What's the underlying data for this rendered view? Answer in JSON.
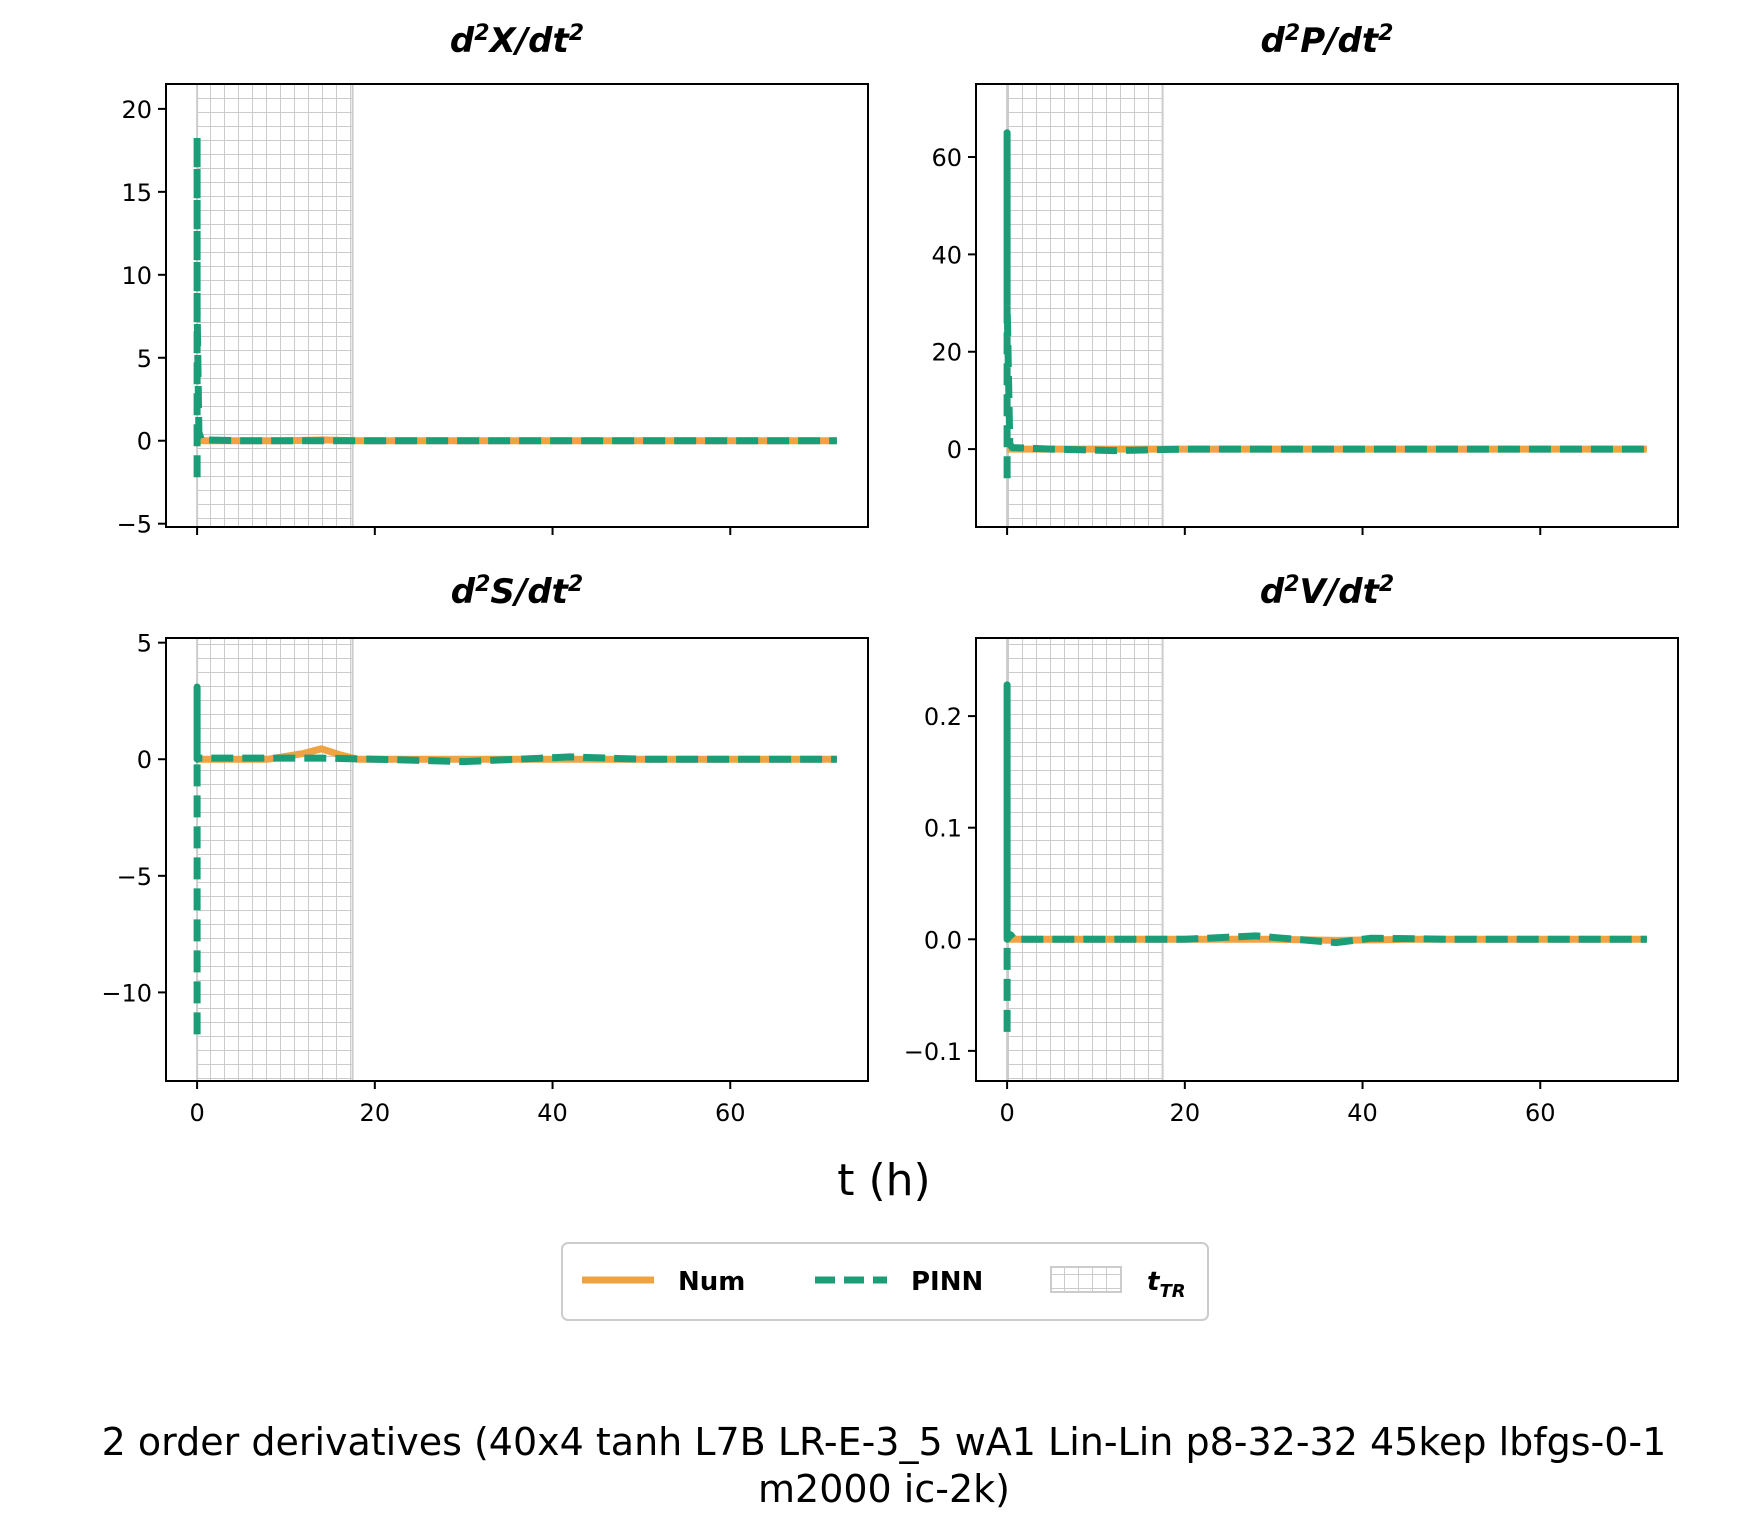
{
  "figure": {
    "xlabel": "t (h)",
    "suptitle_line1": "2 order derivatives (40x4 tanh L7B LR-E-3_5 wA1 Lin-Lin p8-32-32 45kep lbfgs-0-1",
    "suptitle_line2": "m2000 ic-2k)"
  },
  "legend": {
    "placement": "bottom-center",
    "num_label": "Num",
    "pinn_label": "PINN",
    "ttr_label_main": "t",
    "ttr_label_sub": "TR"
  },
  "colors": {
    "num": "#f0a342",
    "pinn": "#1b9e77",
    "hatch": "#cccccc"
  },
  "chart_data": [
    {
      "type": "line",
      "title_var": "X",
      "xlim": [
        -3.5,
        75.5
      ],
      "ylim": [
        -5.2,
        21.5
      ],
      "xticks": [
        0,
        20,
        40,
        60
      ],
      "xtick_labels": [],
      "yticks": [
        -5,
        0,
        5,
        10,
        15,
        20
      ],
      "ytick_labels": [
        "−5",
        "0",
        "5",
        "10",
        "15",
        "20"
      ],
      "training_region": [
        0,
        17.5
      ],
      "show_xtick_labels": false,
      "series": [
        {
          "name": "Num",
          "x": [
            0,
            10,
            14,
            18,
            30,
            50,
            72
          ],
          "y": [
            0,
            0,
            0.05,
            0,
            0,
            0,
            0
          ]
        },
        {
          "name": "PINN",
          "x": [
            0,
            0,
            0,
            0.2,
            0.5,
            5,
            20,
            40,
            72
          ],
          "y": [
            -2.2,
            18.3,
            8,
            0.5,
            0.05,
            0,
            0,
            0,
            0
          ]
        }
      ]
    },
    {
      "type": "line",
      "title_var": "P",
      "xlim": [
        -3.5,
        75.5
      ],
      "ylim": [
        -16,
        75
      ],
      "xticks": [
        0,
        20,
        40,
        60
      ],
      "xtick_labels": [],
      "yticks": [
        0,
        20,
        40,
        60
      ],
      "ytick_labels": [
        "0",
        "20",
        "40",
        "60"
      ],
      "training_region": [
        0,
        17.5
      ],
      "show_xtick_labels": false,
      "series": [
        {
          "name": "Num",
          "x": [
            0,
            10,
            20,
            40,
            72
          ],
          "y": [
            0,
            0,
            0,
            0,
            0
          ]
        },
        {
          "name": "PINN",
          "x": [
            0,
            0,
            0,
            0.3,
            0.6,
            5,
            12,
            20,
            72
          ],
          "y": [
            -6,
            65,
            30,
            1,
            0.3,
            0,
            -0.3,
            0,
            0
          ]
        }
      ]
    },
    {
      "type": "line",
      "title_var": "S",
      "xlim": [
        -3.5,
        75.5
      ],
      "ylim": [
        -13.8,
        5.2
      ],
      "xticks": [
        0,
        20,
        40,
        60
      ],
      "xtick_labels": [
        "0",
        "20",
        "40",
        "60"
      ],
      "yticks": [
        -10,
        -5,
        0,
        5
      ],
      "ytick_labels": [
        "−10",
        "−5",
        "0",
        "5"
      ],
      "training_region": [
        0,
        17.5
      ],
      "show_xtick_labels": true,
      "series": [
        {
          "name": "Num",
          "x": [
            0,
            8,
            12,
            14,
            16,
            18,
            25,
            40,
            72
          ],
          "y": [
            0,
            0,
            0.25,
            0.45,
            0.2,
            0,
            0,
            0,
            0
          ]
        },
        {
          "name": "PINN",
          "x": [
            0,
            0,
            0,
            0.3,
            8,
            14,
            20,
            30,
            42,
            50,
            72
          ],
          "y": [
            -11.8,
            3.1,
            0,
            0.05,
            0.05,
            0.05,
            0,
            -0.1,
            0.1,
            0,
            0
          ]
        }
      ]
    },
    {
      "type": "line",
      "title_var": "V",
      "xlim": [
        -3.5,
        75.5
      ],
      "ylim": [
        -0.127,
        0.27
      ],
      "xticks": [
        0,
        20,
        40,
        60
      ],
      "xtick_labels": [
        "0",
        "20",
        "40",
        "60"
      ],
      "yticks": [
        -0.1,
        0.0,
        0.1,
        0.2
      ],
      "ytick_labels": [
        "−0.1",
        "0.0",
        "0.1",
        "0.2"
      ],
      "training_region": [
        0,
        17.5
      ],
      "show_xtick_labels": true,
      "series": [
        {
          "name": "Num",
          "x": [
            0,
            10,
            20,
            30,
            37,
            45,
            72
          ],
          "y": [
            0,
            0,
            0,
            0,
            -0.001,
            0,
            0
          ]
        },
        {
          "name": "PINN",
          "x": [
            0,
            0,
            0,
            0.4,
            0.8,
            10,
            20,
            28,
            31,
            37,
            41,
            50,
            72
          ],
          "y": [
            -0.083,
            0.228,
            0,
            0.004,
            0,
            0,
            0,
            0.003,
            0.001,
            -0.003,
            0.001,
            0,
            0
          ]
        }
      ]
    }
  ]
}
